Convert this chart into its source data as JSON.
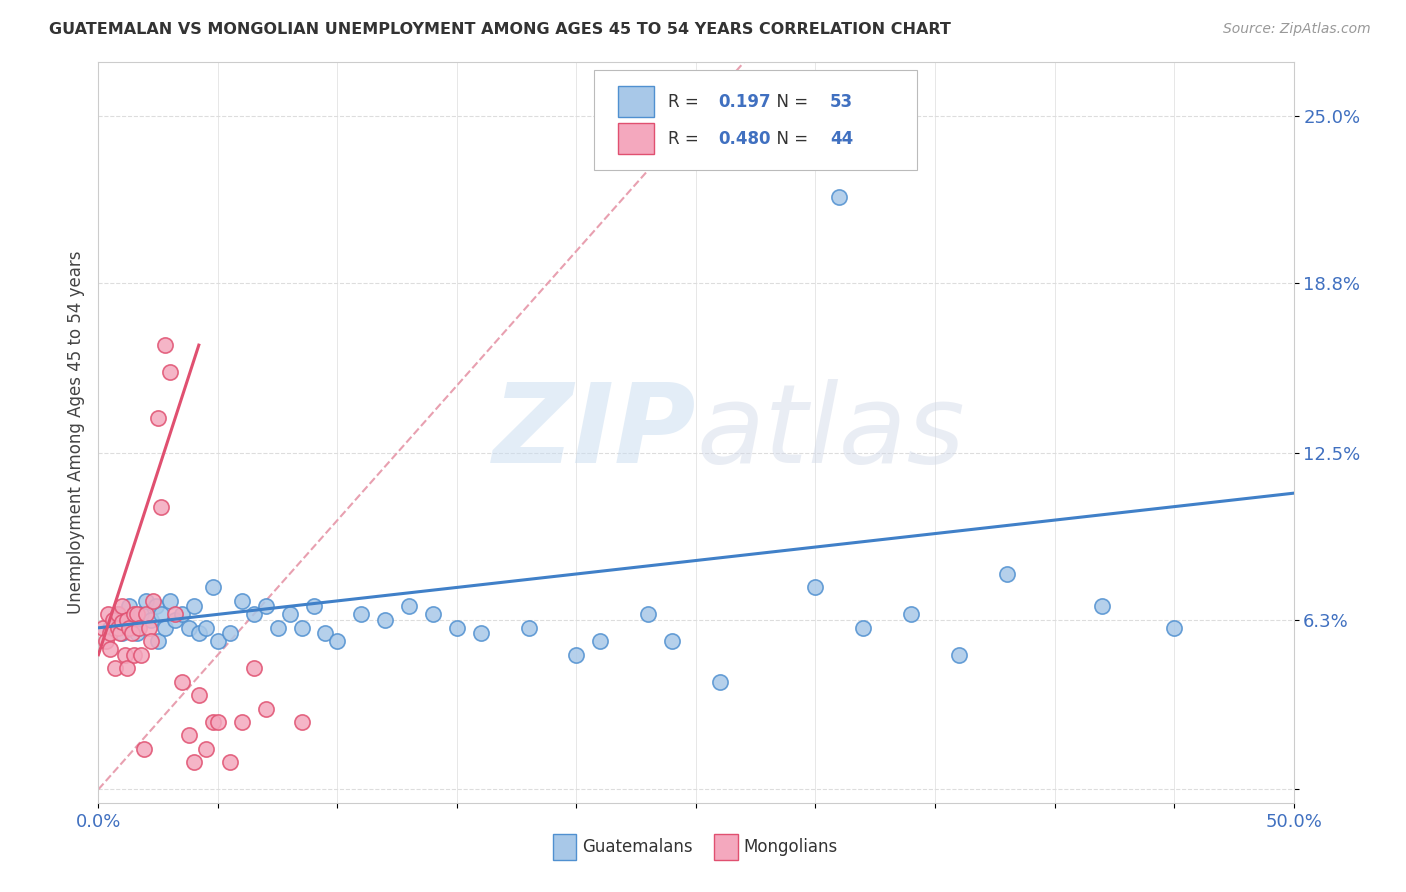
{
  "title": "GUATEMALAN VS MONGOLIAN UNEMPLOYMENT AMONG AGES 45 TO 54 YEARS CORRELATION CHART",
  "source": "Source: ZipAtlas.com",
  "ylabel": "Unemployment Among Ages 45 to 54 years",
  "xlim": [
    0,
    0.5
  ],
  "ylim": [
    -0.005,
    0.27
  ],
  "ytick_positions": [
    0.0,
    0.063,
    0.125,
    0.188,
    0.25
  ],
  "ytick_labels": [
    "",
    "6.3%",
    "12.5%",
    "18.8%",
    "25.0%"
  ],
  "blue_color": "#a8c8e8",
  "pink_color": "#f4a8be",
  "blue_edge_color": "#5090d0",
  "pink_edge_color": "#e05070",
  "blue_line_color": "#4080c8",
  "pink_line_color": "#e05070",
  "legend_r_blue": "0.197",
  "legend_n_blue": "53",
  "legend_r_pink": "0.480",
  "legend_n_pink": "44",
  "legend_label_blue": "Guatemalans",
  "legend_label_pink": "Mongolians",
  "watermark": "ZIPatlas",
  "background_color": "#ffffff",
  "blue_x": [
    0.005,
    0.008,
    0.01,
    0.012,
    0.013,
    0.015,
    0.016,
    0.018,
    0.02,
    0.022,
    0.024,
    0.025,
    0.026,
    0.028,
    0.03,
    0.032,
    0.035,
    0.038,
    0.04,
    0.042,
    0.045,
    0.048,
    0.05,
    0.055,
    0.06,
    0.065,
    0.07,
    0.075,
    0.08,
    0.085,
    0.09,
    0.095,
    0.1,
    0.11,
    0.12,
    0.13,
    0.14,
    0.15,
    0.16,
    0.18,
    0.2,
    0.21,
    0.23,
    0.24,
    0.26,
    0.3,
    0.32,
    0.34,
    0.36,
    0.38,
    0.42,
    0.45,
    0.31
  ],
  "blue_y": [
    0.06,
    0.065,
    0.058,
    0.063,
    0.068,
    0.06,
    0.058,
    0.065,
    0.07,
    0.063,
    0.068,
    0.055,
    0.065,
    0.06,
    0.07,
    0.063,
    0.065,
    0.06,
    0.068,
    0.058,
    0.06,
    0.075,
    0.055,
    0.058,
    0.07,
    0.065,
    0.068,
    0.06,
    0.065,
    0.06,
    0.068,
    0.058,
    0.055,
    0.065,
    0.063,
    0.068,
    0.065,
    0.06,
    0.058,
    0.06,
    0.05,
    0.055,
    0.065,
    0.055,
    0.04,
    0.075,
    0.06,
    0.065,
    0.05,
    0.08,
    0.068,
    0.06,
    0.22
  ],
  "pink_x": [
    0.002,
    0.003,
    0.004,
    0.005,
    0.005,
    0.006,
    0.007,
    0.008,
    0.008,
    0.009,
    0.01,
    0.01,
    0.011,
    0.012,
    0.012,
    0.013,
    0.014,
    0.015,
    0.015,
    0.016,
    0.017,
    0.018,
    0.019,
    0.02,
    0.021,
    0.022,
    0.023,
    0.025,
    0.026,
    0.028,
    0.03,
    0.032,
    0.035,
    0.038,
    0.04,
    0.042,
    0.045,
    0.048,
    0.05,
    0.055,
    0.06,
    0.065,
    0.07,
    0.085
  ],
  "pink_y": [
    0.06,
    0.055,
    0.065,
    0.058,
    0.052,
    0.063,
    0.045,
    0.065,
    0.06,
    0.058,
    0.062,
    0.068,
    0.05,
    0.063,
    0.045,
    0.06,
    0.058,
    0.065,
    0.05,
    0.065,
    0.06,
    0.05,
    0.015,
    0.065,
    0.06,
    0.055,
    0.07,
    0.138,
    0.105,
    0.165,
    0.155,
    0.065,
    0.04,
    0.02,
    0.01,
    0.035,
    0.015,
    0.025,
    0.025,
    0.01,
    0.025,
    0.045,
    0.03,
    0.025
  ],
  "blue_trend_x": [
    0.0,
    0.5
  ],
  "blue_trend_y": [
    0.06,
    0.11
  ],
  "pink_trend_x": [
    0.0,
    0.042
  ],
  "pink_trend_y": [
    0.05,
    0.165
  ],
  "ref_line_color": "#e8a0b0",
  "ref_line_x": [
    0.0,
    0.27
  ],
  "ref_line_y": [
    0.0,
    0.27
  ]
}
